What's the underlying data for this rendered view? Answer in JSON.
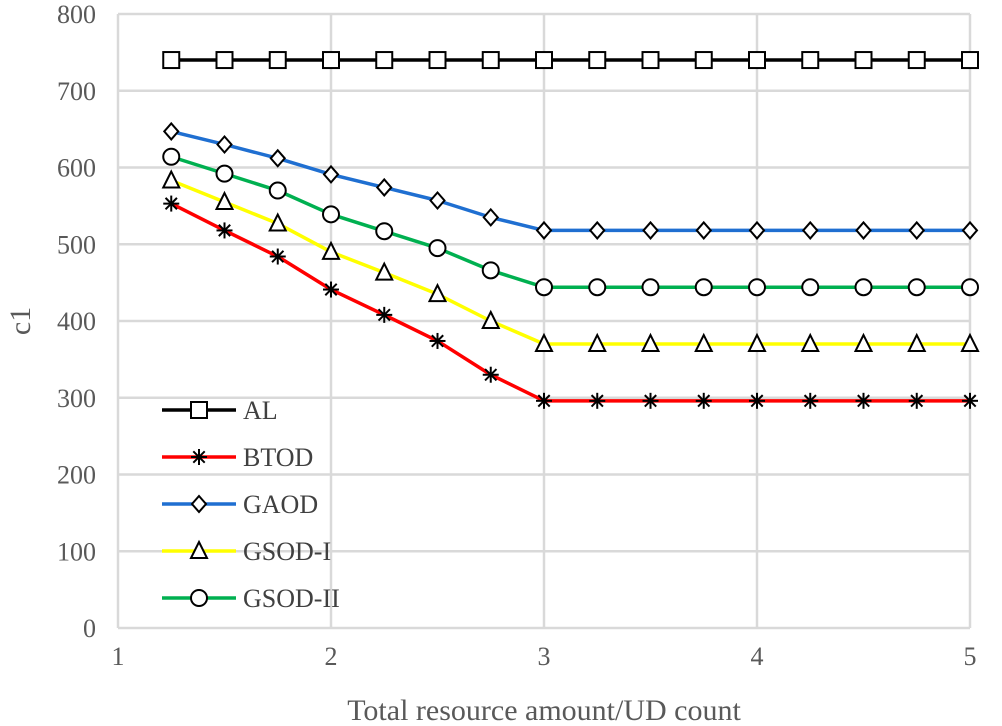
{
  "chart_data": {
    "type": "line",
    "title": "",
    "xlabel": "Total resource amount/UD count",
    "ylabel": "c1",
    "xlim": [
      1,
      5
    ],
    "ylim": [
      0,
      800
    ],
    "x_ticks": [
      "1",
      "2",
      "3",
      "4",
      "5"
    ],
    "y_ticks": [
      "0",
      "100",
      "200",
      "300",
      "400",
      "500",
      "600",
      "700",
      "800"
    ],
    "grid": true,
    "legend_position": "left-bottom inside plot",
    "x": [
      1.25,
      1.5,
      1.75,
      2,
      2.25,
      2.5,
      2.75,
      3,
      3.25,
      3.5,
      3.75,
      4,
      4.25,
      4.5,
      4.75,
      5
    ],
    "series": [
      {
        "name": "AL",
        "color": "#000000",
        "marker": "square",
        "values": [
          740,
          740,
          740,
          740,
          740,
          740,
          740,
          740,
          740,
          740,
          740,
          740,
          740,
          740,
          740,
          740
        ]
      },
      {
        "name": "BTOD",
        "color": "#ff0000",
        "marker": "asterisk",
        "values": [
          553,
          518,
          484,
          441,
          408,
          374,
          330,
          296,
          296,
          296,
          296,
          296,
          296,
          296,
          296,
          296
        ]
      },
      {
        "name": "GAOD",
        "color": "#1f6fd1",
        "marker": "diamond",
        "values": [
          647,
          630,
          612,
          591,
          574,
          557,
          535,
          518,
          518,
          518,
          518,
          518,
          518,
          518,
          518,
          518
        ]
      },
      {
        "name": "GSOD-I",
        "color": "#ffff00",
        "marker": "triangle",
        "values": [
          583,
          555,
          527,
          490,
          463,
          435,
          400,
          370,
          370,
          370,
          370,
          370,
          370,
          370,
          370,
          370
        ]
      },
      {
        "name": "GSOD-II",
        "color": "#00b050",
        "marker": "circle",
        "values": [
          614,
          592,
          570,
          539,
          517,
          495,
          466,
          444,
          444,
          444,
          444,
          444,
          444,
          444,
          444,
          444
        ]
      }
    ]
  }
}
